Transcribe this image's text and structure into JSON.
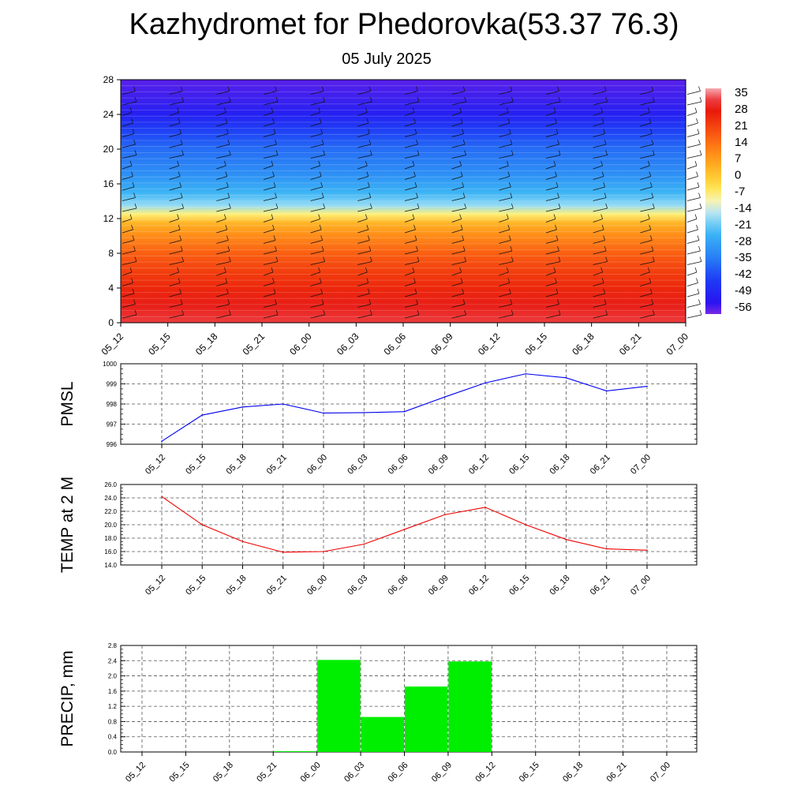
{
  "title": "Kazhydromet for Phedorovka(53.37 76.3)",
  "subtitle": "05 July 2025",
  "time_labels": [
    "05_12",
    "05_15",
    "05_18",
    "05_21",
    "06_00",
    "06_03",
    "06_06",
    "06_09",
    "06_12",
    "06_15",
    "06_18",
    "06_21",
    "07_00"
  ],
  "chart_data": [
    {
      "type": "heatmap",
      "y_ticks": [
        "0",
        "4",
        "8",
        "12",
        "16",
        "20",
        "24",
        "28"
      ],
      "ylim": [
        0,
        28
      ],
      "x": [
        "05_12",
        "05_15",
        "05_18",
        "05_21",
        "06_00",
        "06_03",
        "06_06",
        "06_09",
        "06_12",
        "06_15",
        "06_18",
        "06_21",
        "07_00"
      ],
      "colorbar_labels": [
        "35",
        "28",
        "21",
        "14",
        "7",
        "0",
        "-7",
        "-14",
        "-21",
        "-28",
        "-35",
        "-42",
        "-49",
        "-56"
      ],
      "colorbar_range": [
        -60,
        38
      ],
      "levels": [
        {
          "y": 0,
          "value": 33
        },
        {
          "y": 2,
          "value": 30
        },
        {
          "y": 4,
          "value": 26
        },
        {
          "y": 6,
          "value": 22
        },
        {
          "y": 8,
          "value": 17
        },
        {
          "y": 10,
          "value": 10
        },
        {
          "y": 11.5,
          "value": 3
        },
        {
          "y": 12.5,
          "value": -8
        },
        {
          "y": 13.5,
          "value": -18
        },
        {
          "y": 15,
          "value": -25
        },
        {
          "y": 17,
          "value": -32
        },
        {
          "y": 20,
          "value": -38
        },
        {
          "y": 22,
          "value": -44
        },
        {
          "y": 24,
          "value": -52
        },
        {
          "y": 28,
          "value": -58
        }
      ],
      "colors": {
        "warm": "#e8140c",
        "cold": "#2a12f0"
      }
    },
    {
      "type": "line",
      "ylabel": "PMSL",
      "x": [
        "05_12",
        "05_15",
        "05_18",
        "05_21",
        "06_00",
        "06_03",
        "06_06",
        "06_09",
        "06_12",
        "06_15",
        "06_18",
        "06_21",
        "07_00"
      ],
      "y_ticks": [
        "996",
        "997",
        "998",
        "999",
        "1000"
      ],
      "ylim": [
        996,
        1000
      ],
      "series": [
        {
          "values": [
            996.15,
            997.45,
            997.85,
            998.0,
            997.55,
            997.57,
            997.62,
            998.35,
            999.05,
            999.5,
            999.3,
            998.65,
            998.88
          ],
          "color": "#0000ee"
        }
      ]
    },
    {
      "type": "line",
      "ylabel": "TEMP at 2 M",
      "x": [
        "05_12",
        "05_15",
        "05_18",
        "05_21",
        "06_00",
        "06_03",
        "06_06",
        "06_09",
        "06_12",
        "06_15",
        "06_18",
        "06_21",
        "07_00"
      ],
      "y_ticks": [
        "14.0",
        "16.0",
        "18.0",
        "20.0",
        "22.0",
        "24.0",
        "26.0"
      ],
      "ylim": [
        14,
        26
      ],
      "series": [
        {
          "values": [
            24.2,
            20.0,
            17.5,
            15.9,
            16.0,
            17.1,
            19.3,
            21.5,
            22.6,
            20.0,
            17.8,
            16.4,
            16.2
          ],
          "color": "#ee0000"
        }
      ]
    },
    {
      "type": "bar",
      "ylabel": "PRECIP, mm",
      "categories": [
        "05_12",
        "05_15",
        "05_18",
        "05_21",
        "06_00",
        "06_03",
        "06_06",
        "06_09",
        "06_12",
        "06_15",
        "06_18",
        "06_21",
        "07_00"
      ],
      "y_ticks": [
        "0.0",
        "0.4",
        "0.8",
        "1.2",
        "1.6",
        "2.0",
        "2.4",
        "2.8"
      ],
      "ylim": [
        0,
        2.8
      ],
      "values": [
        0,
        0,
        0,
        0.02,
        2.42,
        0.92,
        1.72,
        2.38,
        0,
        0,
        0,
        0,
        0
      ],
      "color": "#00ee00"
    }
  ]
}
